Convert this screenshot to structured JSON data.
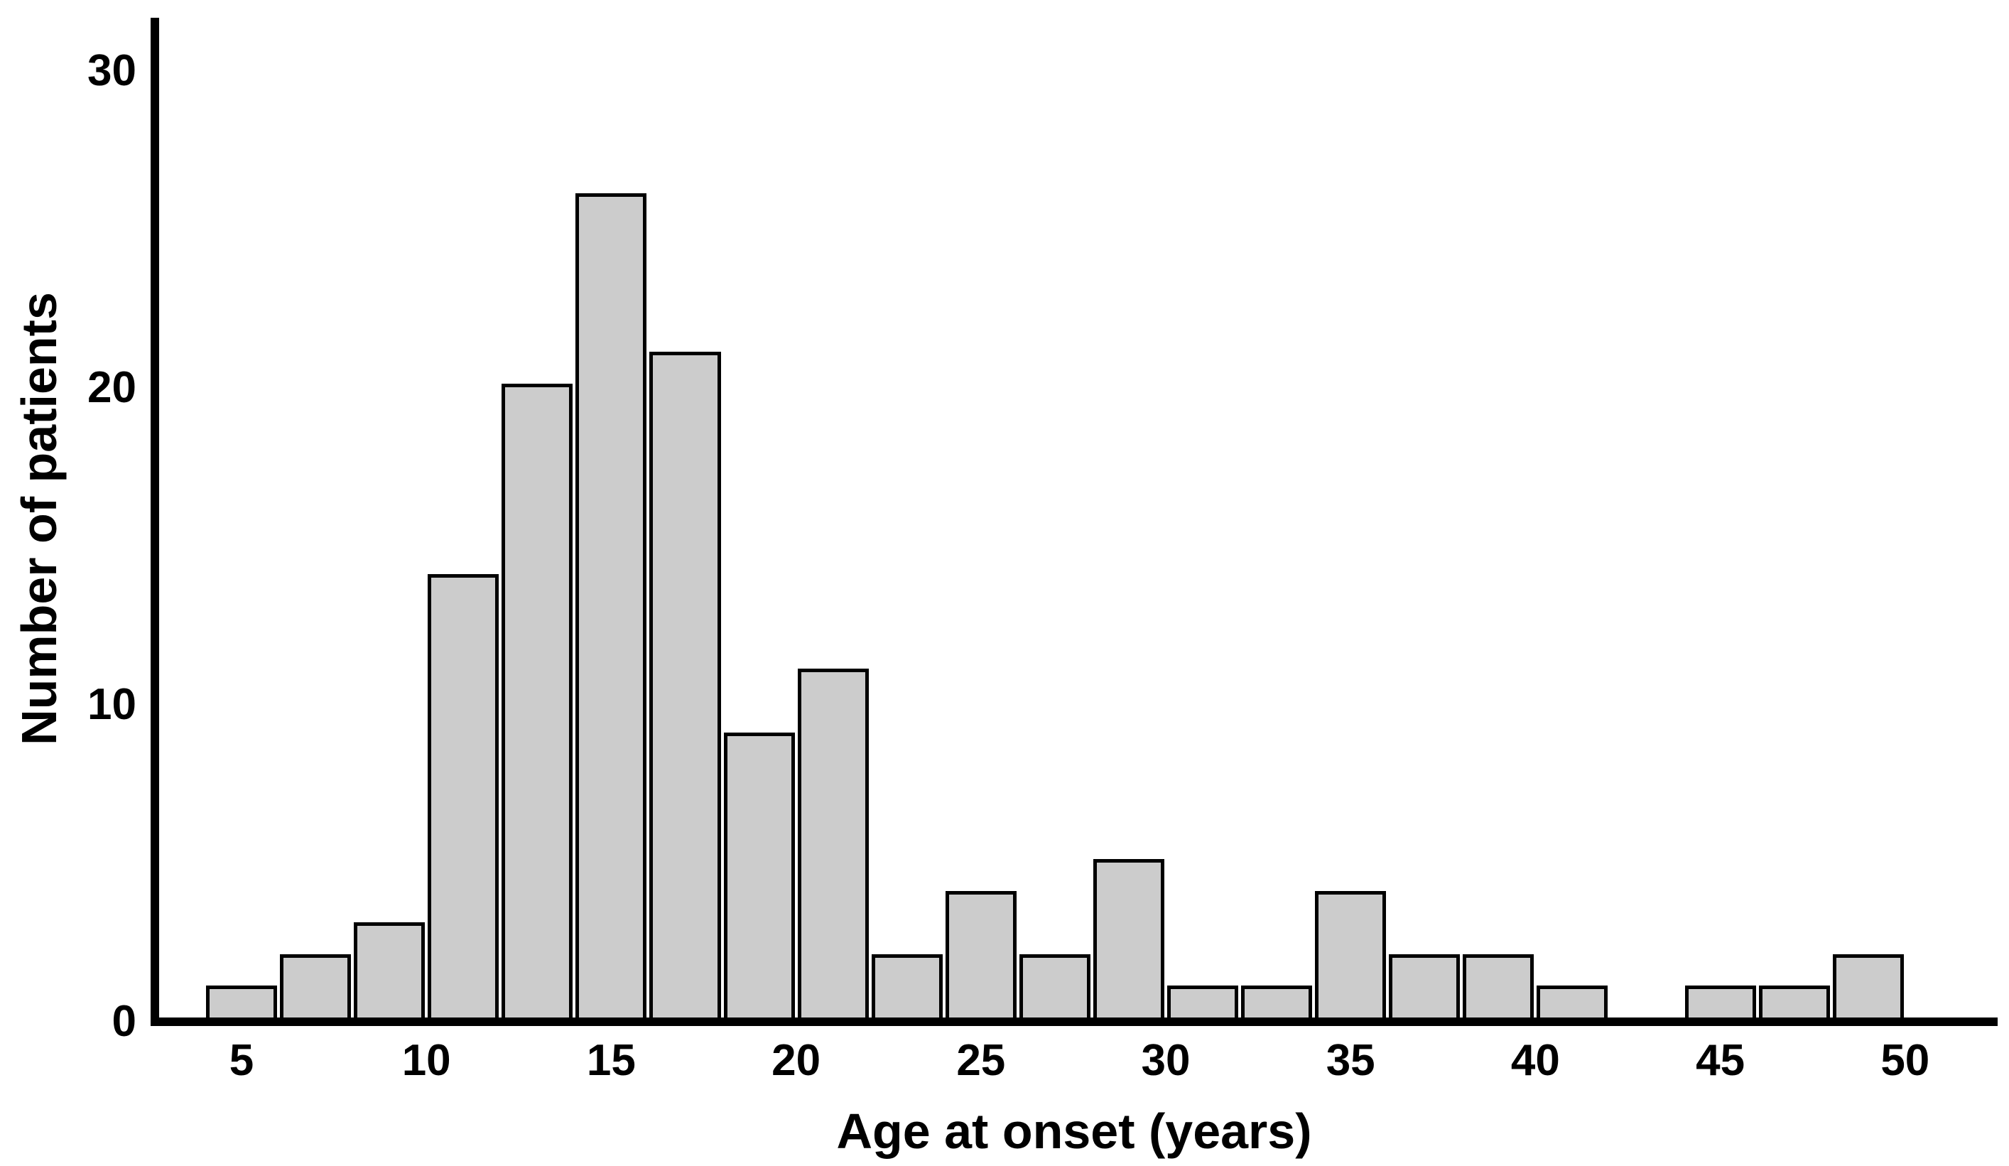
{
  "figure": {
    "background": "#ffffff"
  },
  "chart_data": {
    "type": "bar",
    "subtype": "histogram",
    "title": "",
    "xlabel": "Age at onset (years)",
    "ylabel": "Number of patients",
    "x_tick_labels": [
      5,
      10,
      15,
      20,
      25,
      30,
      35,
      40,
      45,
      50
    ],
    "y_tick_labels": [
      0,
      10,
      20,
      30
    ],
    "xlim": [
      2.5,
      52.5
    ],
    "ylim": [
      0,
      30
    ],
    "grid": false,
    "legend": false,
    "bin_width_years": 2,
    "bin_edges": [
      4,
      6,
      8,
      10,
      12,
      14,
      16,
      18,
      20,
      22,
      24,
      26,
      28,
      30,
      32,
      34,
      36,
      38,
      40,
      42,
      44,
      46,
      48,
      50
    ],
    "values": [
      1,
      2,
      3,
      14,
      20,
      26,
      21,
      9,
      11,
      2,
      4,
      2,
      5,
      1,
      1,
      4,
      2,
      2,
      1,
      0,
      1,
      1,
      2
    ],
    "colors": {
      "bar_fill": "#cccccc",
      "bar_border": "#000000",
      "axis": "#000000",
      "text": "#000000"
    }
  }
}
